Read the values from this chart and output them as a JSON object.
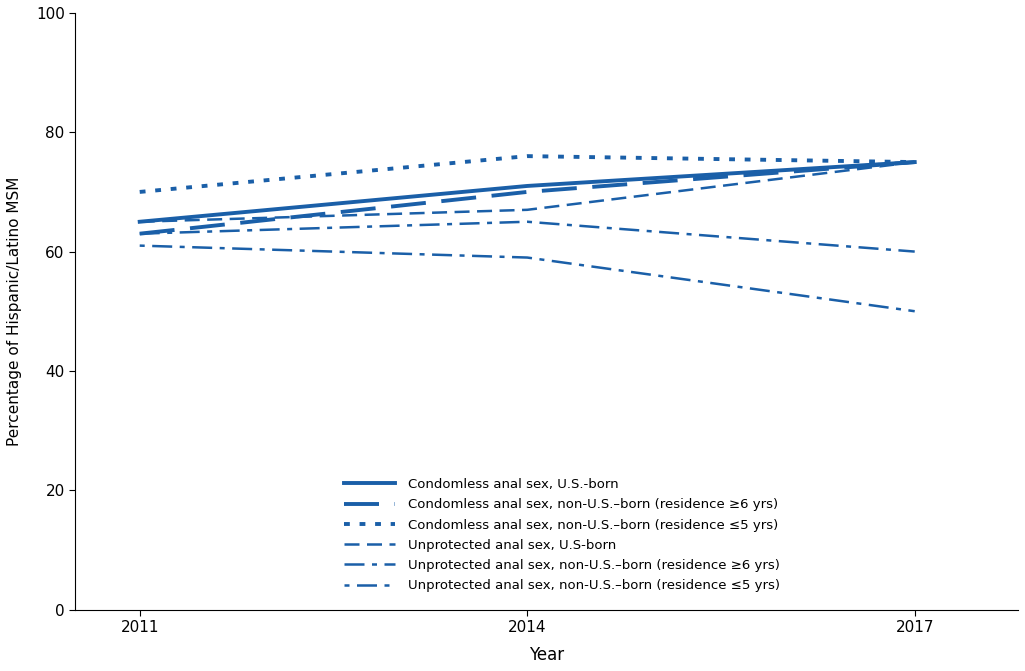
{
  "x": [
    2011,
    2014,
    2017
  ],
  "series": [
    {
      "label": "Condomless anal sex, U.S.-born",
      "values": [
        65,
        71,
        75
      ],
      "style_idx": 0
    },
    {
      "label": "Condomless anal sex, non-U.S.–born (residence ≥6 yrs)",
      "values": [
        63,
        70,
        75
      ],
      "style_idx": 1
    },
    {
      "label": "Condomless anal sex, non-U.S.–born (residence ≤5 yrs)",
      "values": [
        70,
        76,
        75
      ],
      "style_idx": 2
    },
    {
      "label": "Unprotected anal sex, U.S-born",
      "values": [
        65,
        67,
        75
      ],
      "style_idx": 3
    },
    {
      "label": "Unprotected anal sex, non-U.S.–born (residence ≥6 yrs)",
      "values": [
        63,
        65,
        60
      ],
      "style_idx": 4
    },
    {
      "label": "Unprotected anal sex, non-U.S.–born (residence ≤5 yrs)",
      "values": [
        61,
        59,
        50
      ],
      "style_idx": 5
    }
  ],
  "color": "#1a5fa8",
  "xlabel": "Year",
  "ylabel": "Percentage of Hispanic/Latino MSM",
  "ylim": [
    0,
    100
  ],
  "yticks": [
    0,
    20,
    40,
    60,
    80,
    100
  ],
  "xticks": [
    2011,
    2014,
    2017
  ]
}
